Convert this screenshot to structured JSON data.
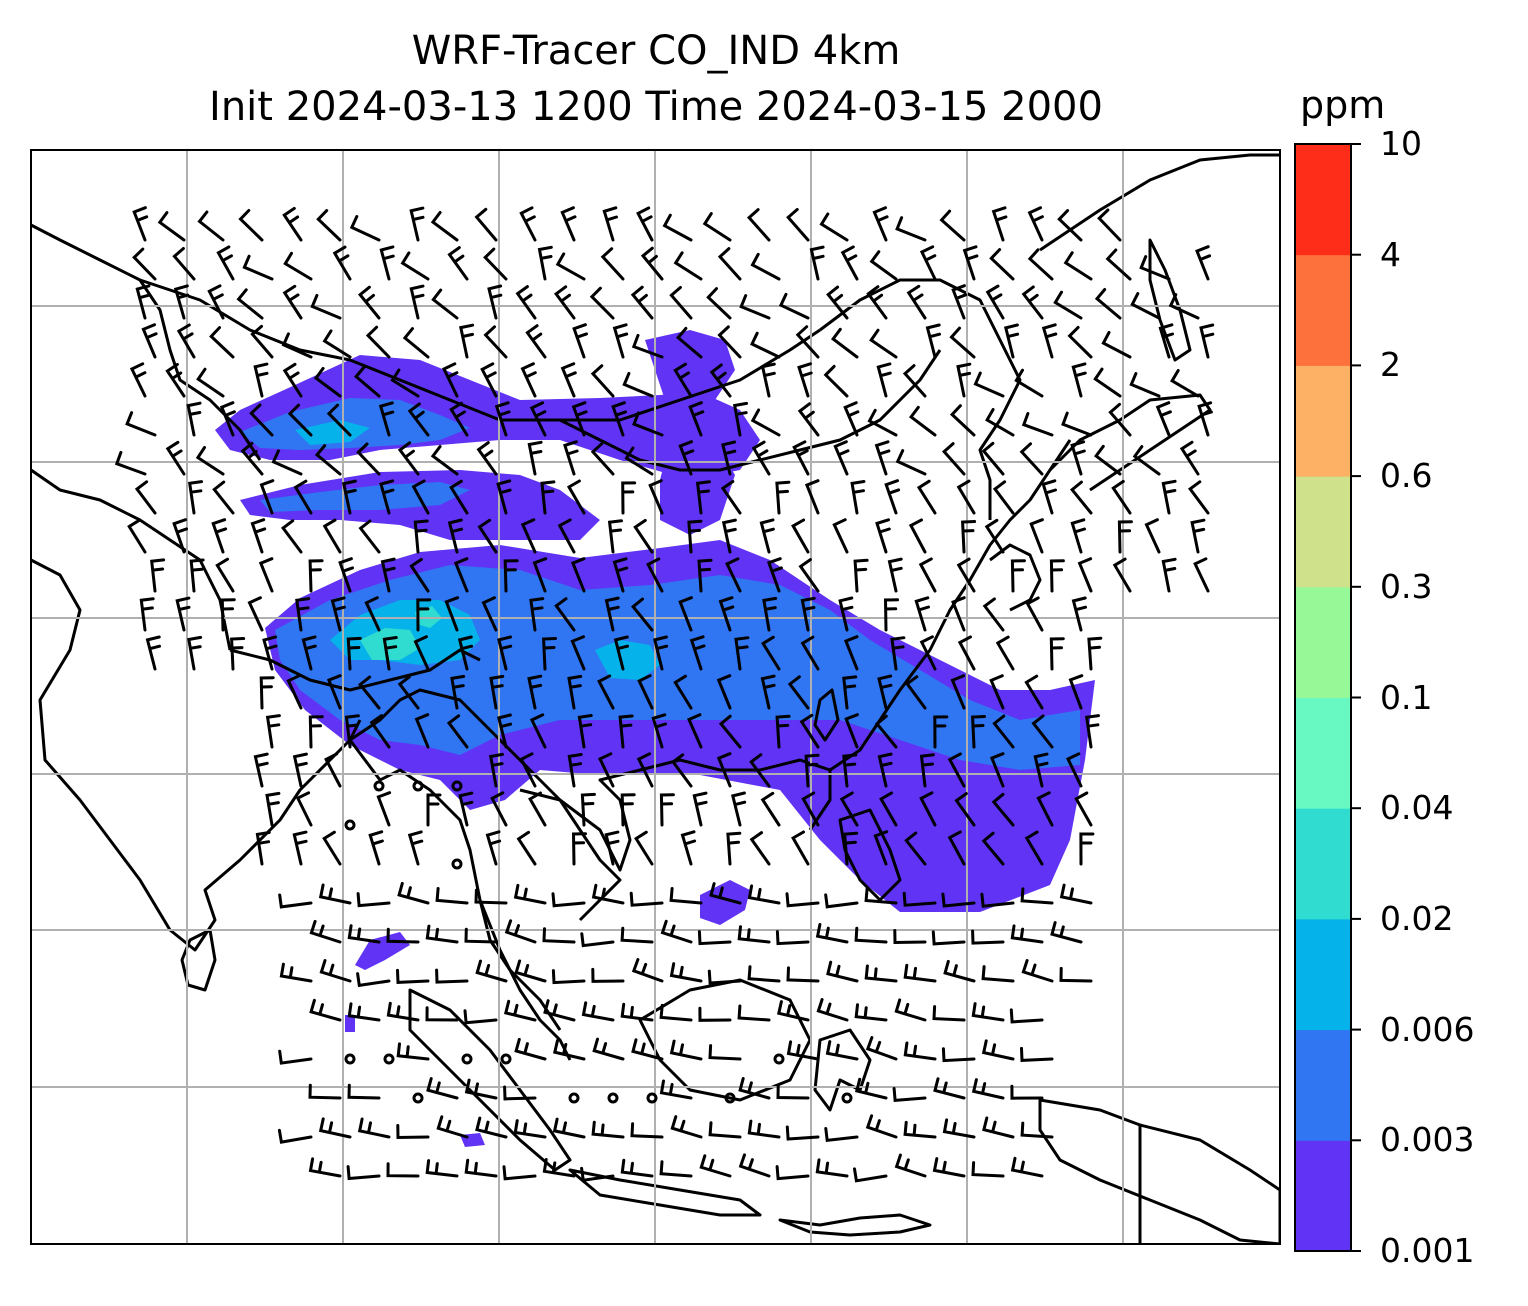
{
  "title": {
    "line1": "WRF-Tracer CO_IND 4km",
    "line2": "Init 2024-03-13 1200 Time 2024-03-15 2000"
  },
  "colorbar": {
    "unit": "ppm",
    "tick_labels": [
      "0.001",
      "0.003",
      "0.006",
      "0.02",
      "0.04",
      "0.1",
      "0.3",
      "0.6",
      "2",
      "4",
      "10"
    ],
    "colors": [
      "#6133f5",
      "#3075f2",
      "#06b2ea",
      "#2fdccf",
      "#68f8c1",
      "#96f896",
      "#cfe18a",
      "#fdb164",
      "#fd723c",
      "#fd2d1a"
    ]
  },
  "map": {
    "gridlines": true,
    "ocean_color": "#ffffff",
    "plume_core_color": "#2fdccf",
    "coastline_color": "#000000"
  }
}
